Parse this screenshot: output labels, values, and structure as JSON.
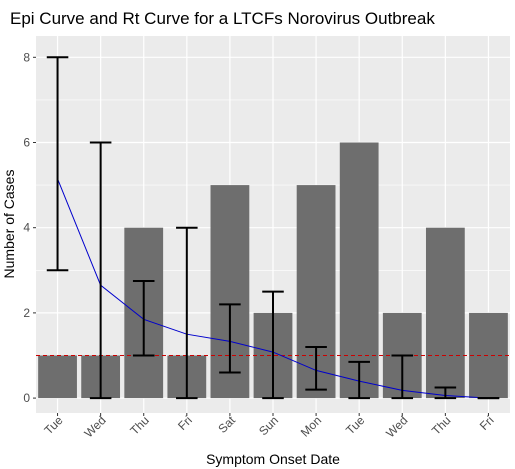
{
  "chart_data": {
    "type": "bar",
    "title": "Epi Curve and Rt Curve for a LTCFs Norovirus Outbreak",
    "xlabel": "Symptom Onset Date",
    "ylabel": "Number of Cases",
    "categories": [
      "Tue",
      "Wed",
      "Thu",
      "Fri",
      "Sat",
      "Sun",
      "Mon",
      "Tue",
      "Wed",
      "Thu",
      "Fri"
    ],
    "cases": [
      1,
      1,
      4,
      1,
      5,
      2,
      5,
      6,
      2,
      4,
      2
    ],
    "rt": {
      "estimate": [
        5.15,
        2.65,
        1.85,
        1.5,
        1.33,
        1.08,
        0.65,
        0.4,
        0.18,
        0.06,
        0.0
      ],
      "lower": [
        3.0,
        0.0,
        1.0,
        0.0,
        0.6,
        0.0,
        0.2,
        0.0,
        0.0,
        0.0,
        0.0
      ],
      "upper": [
        8.0,
        6.0,
        2.75,
        4.0,
        2.2,
        2.5,
        1.2,
        0.85,
        1.0,
        0.25,
        0.0
      ]
    },
    "reference_line": {
      "value": 1,
      "style": "dashed"
    },
    "ylim": [
      -0.35,
      8.5
    ],
    "yticks": [
      0,
      2,
      4,
      6,
      8
    ],
    "grid": true,
    "colors": {
      "panel_background": "#ebebeb",
      "grid": "#ffffff",
      "bar": "#6e6e6e",
      "rt_line": "#0000cc",
      "error_bar": "#000000",
      "reference_line": "#cc0000",
      "tick_label": "#4d4d4d"
    }
  }
}
